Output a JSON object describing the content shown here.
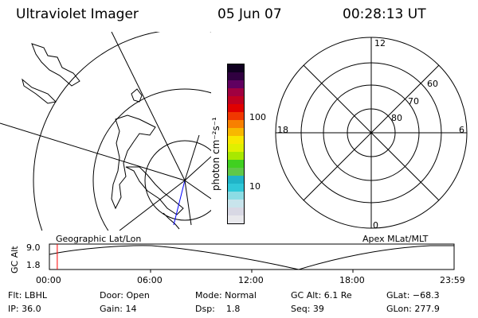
{
  "header": {
    "title": "Ultraviolet Imager",
    "date": "05 Jun 07",
    "time": "00:28:13 UT"
  },
  "colorbar": {
    "unit_label": "photon cm⁻²s⁻¹",
    "ticks": [
      "100",
      "10"
    ],
    "scale": "log",
    "colors": [
      "#e8e8ec",
      "#d8d8e4",
      "#c8e4ec",
      "#8cdce4",
      "#30c8d8",
      "#20b4c8",
      "#60c848",
      "#40d020",
      "#a8e800",
      "#e0f000",
      "#f8e800",
      "#f8b800",
      "#f88000",
      "#f03800",
      "#e00000",
      "#c00020",
      "#a00040",
      "#600060",
      "#300040",
      "#100020"
    ]
  },
  "geo_panel": {
    "label": "Geographic Lat/Lon"
  },
  "polar_panel": {
    "label": "Apex MLat/MLT",
    "mlt_labels": [
      "12",
      "18",
      "6",
      "0"
    ],
    "lat_labels": [
      "60",
      "70",
      "80"
    ]
  },
  "timeline": {
    "ylabel": "GC Alt",
    "yticks": [
      "9.0",
      "1.8"
    ],
    "xticks": [
      "00:00",
      "06:00",
      "12:00",
      "18:00",
      "23:59"
    ],
    "marker_time": "00:28",
    "marker_color": "#ff0000"
  },
  "info": {
    "flt": "Flt: LBHL",
    "ip": "IP: 36.0",
    "door": "Door: Open",
    "gain": "Gain: 14",
    "mode": "Mode: Normal",
    "dsp": "Dsp:    1.8",
    "gcalt": "GC Alt: 6.1 Re",
    "seq": "Seq: 39",
    "glat": "GLat: −68.3",
    "glon": "GLon: 277.9"
  }
}
